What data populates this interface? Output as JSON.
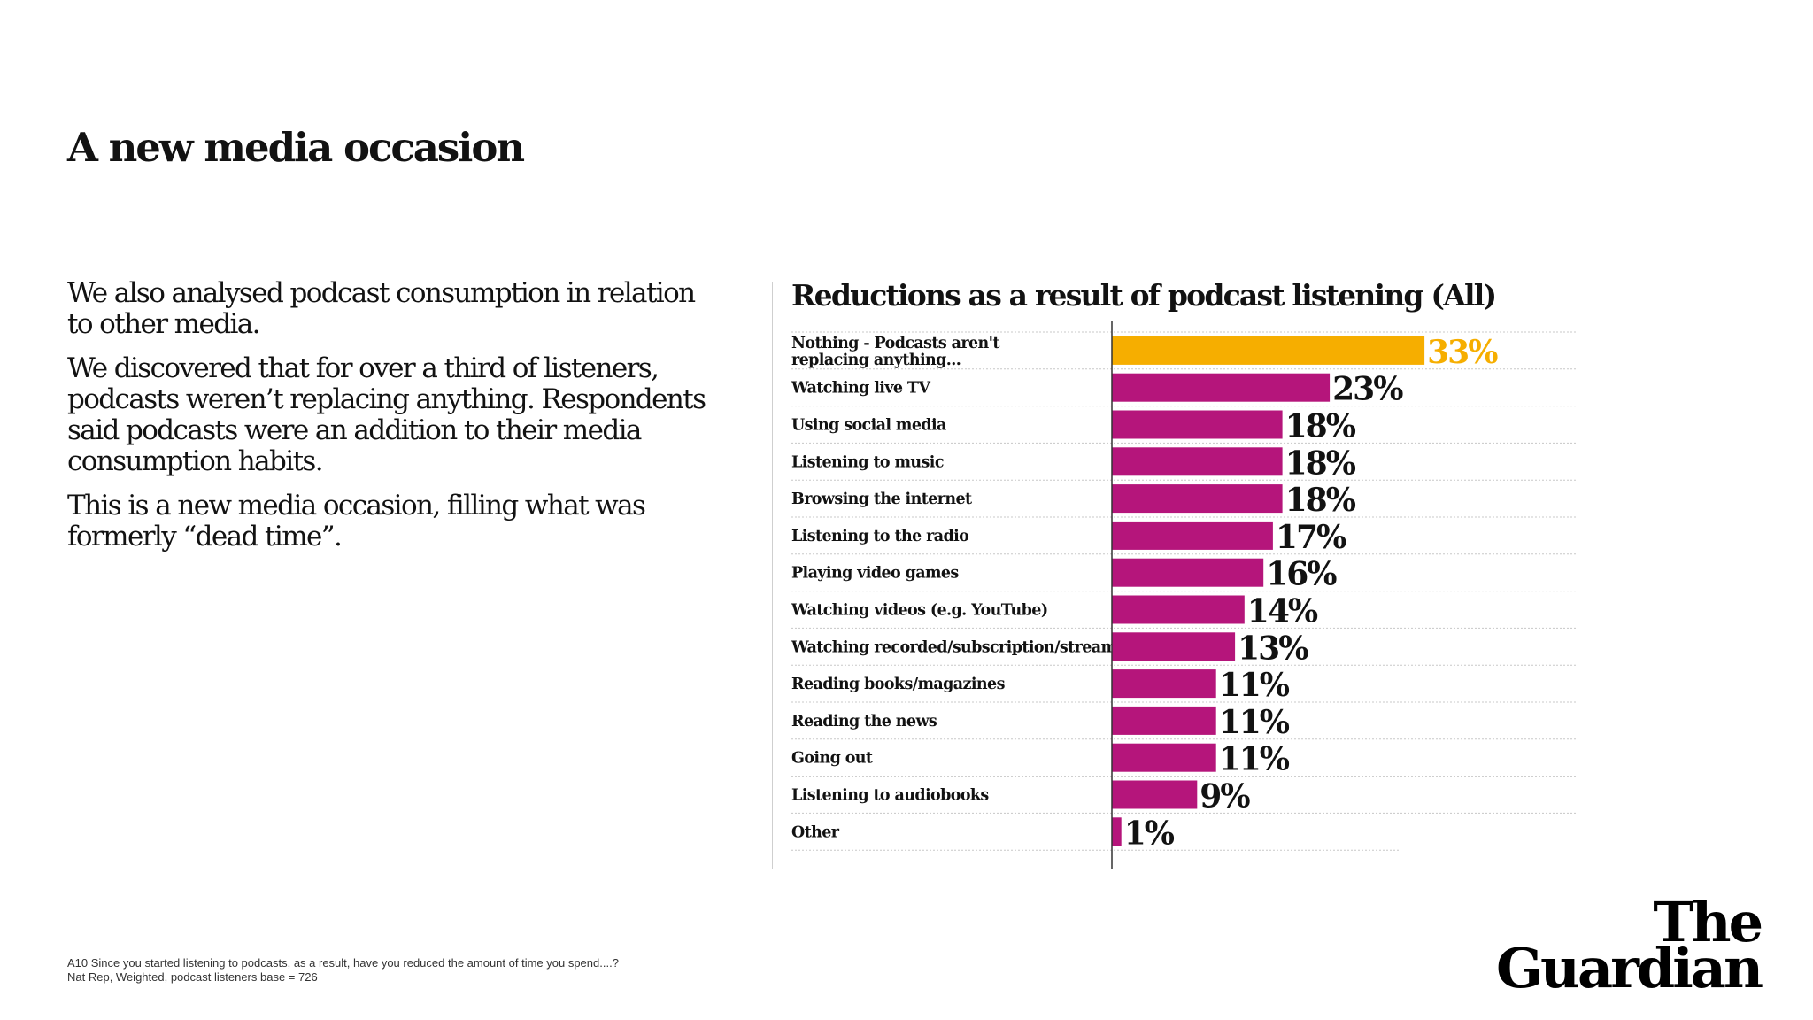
{
  "page": {
    "title": "A new media occasion",
    "paragraphs": [
      "We also analysed podcast consumption in relation to other media.",
      "We discovered that for over a third of listeners, podcasts weren’t replacing anything. Respondents said podcasts were an addition to their media consumption habits.",
      "This is a new media occasion, filling what was formerly “dead time”."
    ],
    "footnote_line1": "A10 Since you started listening to podcasts, as a result, have you reduced the amount of time you spend....?",
    "footnote_line2": "Nat Rep, Weighted, podcast listeners base = 726",
    "logo_line1": "The",
    "logo_line2": "Guardian"
  },
  "colors": {
    "highlight": "#F6AE00",
    "bar": "#B5157B",
    "text": "#121212"
  },
  "chart_data": {
    "type": "bar",
    "orientation": "horizontal",
    "title": "Reductions as a result of podcast listening (All)",
    "unit": "%",
    "categories": [
      "Nothing - Podcasts aren't replacing anything...",
      "Watching live TV",
      "Using social media",
      "Listening to music",
      "Browsing the internet",
      "Listening to the radio",
      "Playing video games",
      "Watching videos (e.g. YouTube)",
      "Watching recorded/subscription/stream",
      "Reading books/magazines",
      "Reading the news",
      "Going out",
      "Listening to audiobooks",
      "Other"
    ],
    "values": [
      33,
      23,
      18,
      18,
      18,
      17,
      16,
      14,
      13,
      11,
      11,
      11,
      9,
      1
    ],
    "highlight_index": 0,
    "grid": false,
    "legend": "none"
  }
}
